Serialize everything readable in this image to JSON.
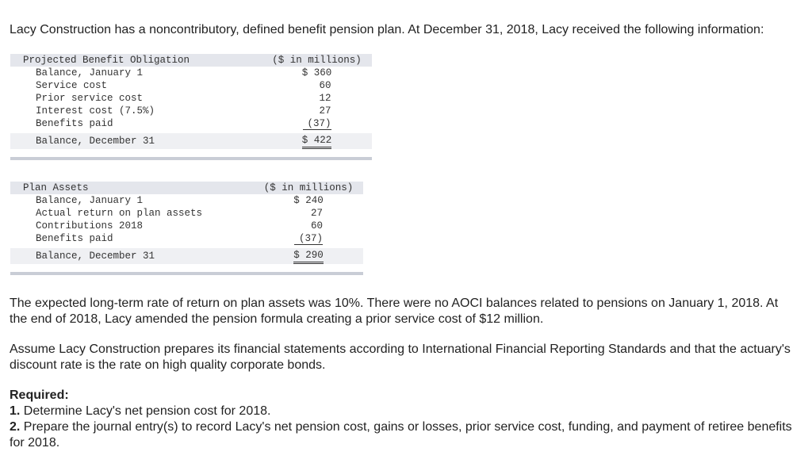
{
  "intro": "Lacy Construction has a noncontributory, defined benefit pension plan. At December 31, 2018, Lacy received the following information:",
  "tables": [
    {
      "header": {
        "label": "Projected Benefit Obligation",
        "unit": "($ in millions)"
      },
      "rows": [
        [
          "Balance, January 1",
          "$ 360"
        ],
        [
          "Service cost",
          "60"
        ],
        [
          "Prior service cost",
          "12"
        ],
        [
          "Interest cost (7.5%)",
          "27"
        ],
        [
          "Benefits paid",
          "(37)"
        ],
        [
          "Balance, December 31",
          "$ 422"
        ]
      ]
    },
    {
      "header": {
        "label": "Plan Assets",
        "unit": "($ in millions)"
      },
      "rows": [
        [
          "Balance, January 1",
          "$ 240"
        ],
        [
          "Actual return on plan assets",
          "27"
        ],
        [
          "Contributions 2018",
          "60"
        ],
        [
          "Benefits paid",
          "(37)"
        ],
        [
          "Balance, December 31",
          "$ 290"
        ]
      ]
    }
  ],
  "paragraphs": [
    "The expected long-term rate of return on plan assets was 10%. There were no AOCI balances related to pensions on January 1, 2018. At the end of 2018, Lacy amended the pension formula creating a prior service cost of $12 million.",
    "Assume Lacy Construction prepares its financial statements according to International Financial Reporting Standards and that the actuary's discount rate is the rate on high quality corporate bonds."
  ],
  "required": {
    "title": "Required:",
    "items": [
      {
        "number": "1.",
        "text": "Determine Lacy's net pension cost for 2018."
      },
      {
        "number": "2.",
        "text": "Prepare the journal entry(s) to record Lacy's net pension cost, gains or losses, prior service cost, funding, and payment of retiree benefits for 2018."
      }
    ]
  }
}
